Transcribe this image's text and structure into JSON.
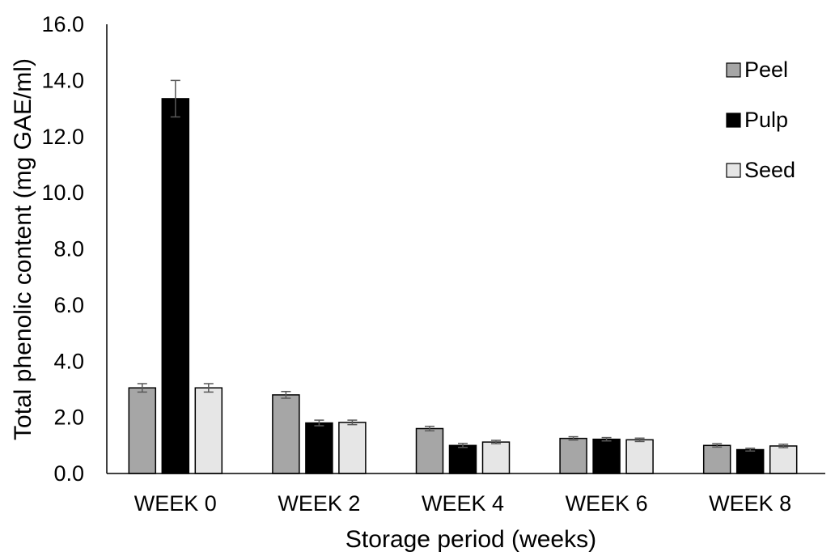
{
  "chart_data": {
    "type": "bar",
    "title": "",
    "xlabel": "Storage period (weeks)",
    "ylabel": "Total phenolic content (mg GAE/ml)",
    "ylim": [
      0,
      16
    ],
    "yticks": [
      "0.0",
      "2.0",
      "4.0",
      "6.0",
      "8.0",
      "10.0",
      "12.0",
      "14.0",
      "16.0"
    ],
    "categories": [
      "WEEK 0",
      "WEEK 2",
      "WEEK 4",
      "WEEK 6",
      "WEEK 8"
    ],
    "grid": false,
    "legend_position": "top-right",
    "series": [
      {
        "name": "Peel",
        "color": "#a6a6a6",
        "values": [
          3.05,
          2.8,
          1.6,
          1.25,
          1.0
        ],
        "errors": [
          0.15,
          0.12,
          0.08,
          0.06,
          0.06
        ]
      },
      {
        "name": "Pulp",
        "color": "#000000",
        "values": [
          13.35,
          1.8,
          1.0,
          1.22,
          0.85
        ],
        "errors": [
          0.65,
          0.1,
          0.07,
          0.06,
          0.05
        ]
      },
      {
        "name": "Seed",
        "color": "#e6e6e6",
        "values": [
          3.05,
          1.82,
          1.12,
          1.2,
          0.98
        ],
        "errors": [
          0.15,
          0.08,
          0.06,
          0.06,
          0.06
        ]
      }
    ]
  }
}
